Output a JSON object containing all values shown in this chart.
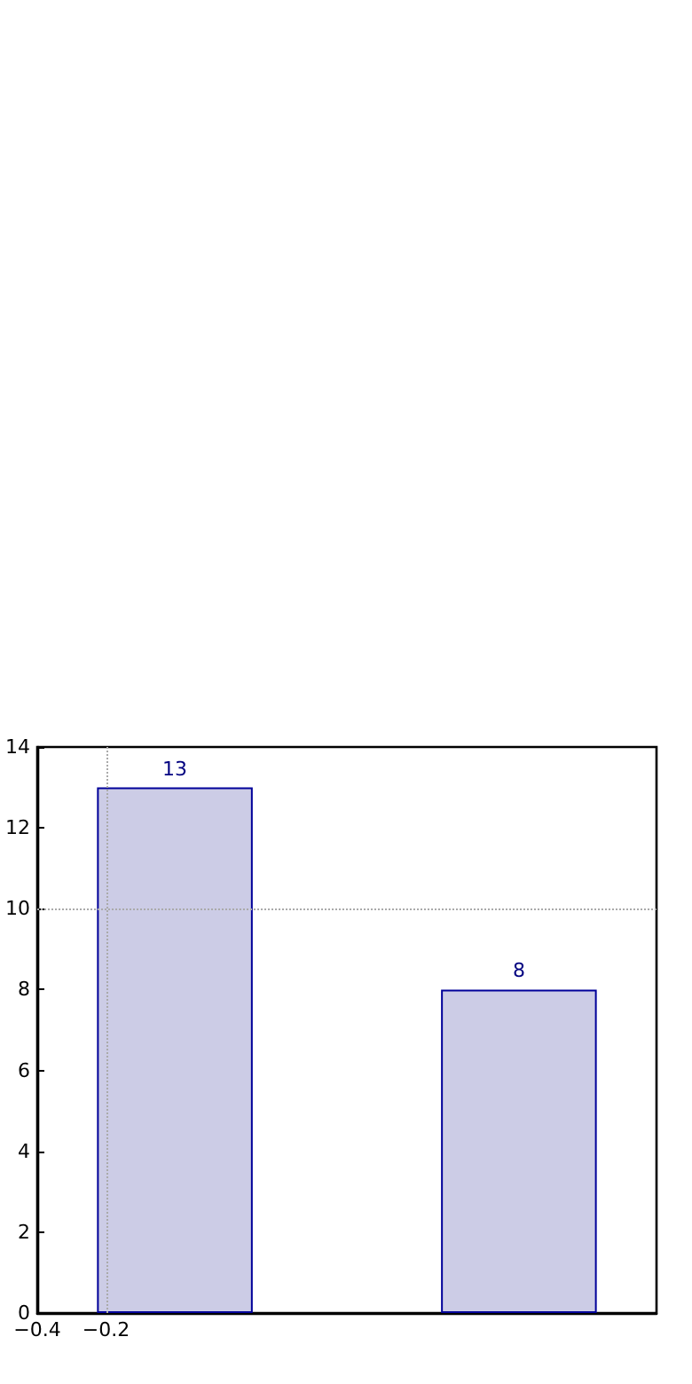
{
  "chart_data": {
    "type": "bar",
    "x": [
      0,
      1
    ],
    "values": [
      13,
      8
    ],
    "color": "#ccccE6",
    "data_labels": true,
    "xlim": [
      -0.4,
      1.4
    ],
    "xticks": [
      {
        "value": -0.4,
        "label": "−0.4"
      },
      {
        "value": -0.2,
        "label": "−0.2"
      }
    ],
    "ylim": [
      0,
      14
    ],
    "yticks": [
      0,
      2,
      4,
      6,
      8,
      10,
      12,
      14
    ],
    "grid": false,
    "ref_lines": [
      {
        "axis": "x",
        "value": -0.2,
        "label": null,
        "color": "#aaaaaa",
        "line_style": "dotted"
      },
      {
        "axis": "y",
        "value": 10,
        "label": null,
        "color": "#aaaaaa",
        "line_style": "dotted"
      }
    ]
  }
}
